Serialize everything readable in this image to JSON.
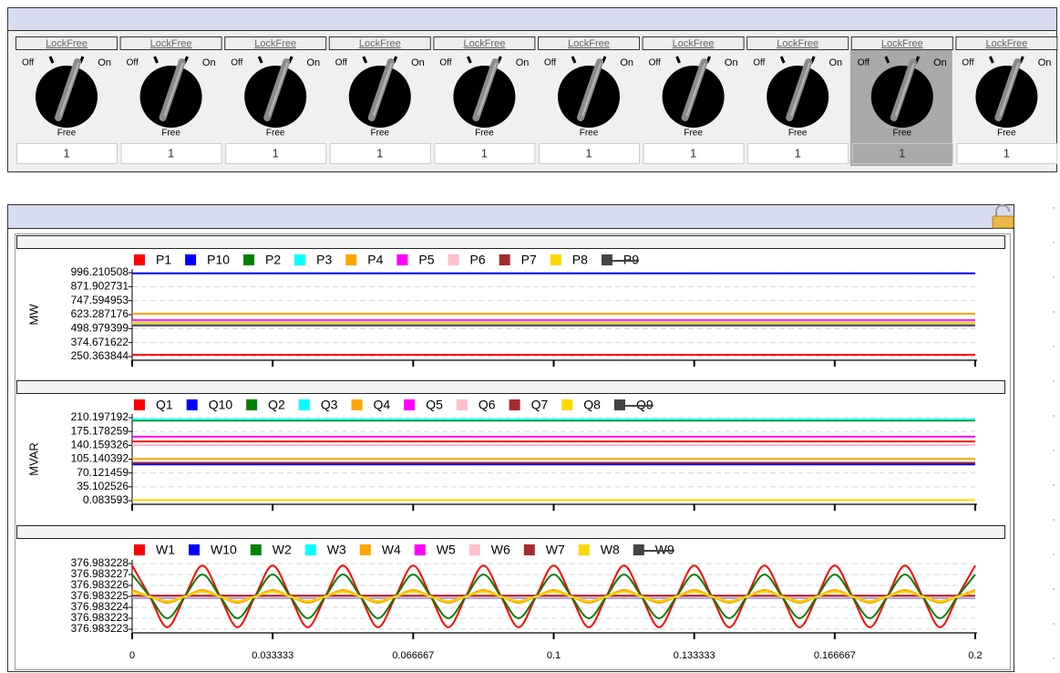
{
  "switches": [
    {
      "lock": "LockFree",
      "off": "Off",
      "on": "On",
      "mode": "Free",
      "value": "1",
      "selected": false
    },
    {
      "lock": "LockFree",
      "off": "Off",
      "on": "On",
      "mode": "Free",
      "value": "1",
      "selected": false
    },
    {
      "lock": "LockFree",
      "off": "Off",
      "on": "On",
      "mode": "Free",
      "value": "1",
      "selected": false
    },
    {
      "lock": "LockFree",
      "off": "Off",
      "on": "On",
      "mode": "Free",
      "value": "1",
      "selected": false
    },
    {
      "lock": "LockFree",
      "off": "Off",
      "on": "On",
      "mode": "Free",
      "value": "1",
      "selected": false
    },
    {
      "lock": "LockFree",
      "off": "Off",
      "on": "On",
      "mode": "Free",
      "value": "1",
      "selected": false
    },
    {
      "lock": "LockFree",
      "off": "Off",
      "on": "On",
      "mode": "Free",
      "value": "1",
      "selected": false
    },
    {
      "lock": "LockFree",
      "off": "Off",
      "on": "On",
      "mode": "Free",
      "value": "1",
      "selected": false
    },
    {
      "lock": "LockFree",
      "off": "Off",
      "on": "On",
      "mode": "Free",
      "value": "1",
      "selected": true
    },
    {
      "lock": "LockFree",
      "off": "Off",
      "on": "On",
      "mode": "Free",
      "value": "1",
      "selected": false
    }
  ],
  "chart_data": [
    {
      "type": "line",
      "y_label": "MW",
      "xlim": [
        0,
        0.2
      ],
      "xticks": [
        0,
        0.033333,
        0.066667,
        0.1,
        0.133333,
        0.166667,
        0.2
      ],
      "show_xtick_labels": false,
      "ylim": [
        250.363844,
        996.210508
      ],
      "yticks": [
        996.210508,
        871.902731,
        747.594953,
        623.287176,
        498.979399,
        374.671622,
        250.363844
      ],
      "grid": true,
      "series": [
        {
          "name": "P1",
          "color": "#ff0000",
          "x": [
            0,
            0.2
          ],
          "values": [
            266,
            266
          ]
        },
        {
          "name": "P10",
          "color": "#0000ff",
          "x": [
            0,
            0.2
          ],
          "values": [
            990,
            990
          ]
        },
        {
          "name": "P2",
          "color": "#008000",
          "x": [
            0,
            0.2
          ],
          "values": [
            545,
            545
          ]
        },
        {
          "name": "P3",
          "color": "#00ffff",
          "x": [
            0,
            0.2
          ],
          "values": [
            540,
            540
          ]
        },
        {
          "name": "P4",
          "color": "#ffa500",
          "x": [
            0,
            0.2
          ],
          "values": [
            631,
            631
          ]
        },
        {
          "name": "P5",
          "color": "#ff00ff",
          "x": [
            0,
            0.2
          ],
          "values": [
            574,
            574
          ]
        },
        {
          "name": "P6",
          "color": "#ffc0cb",
          "x": [
            0,
            0.2
          ],
          "values": [
            560,
            560
          ]
        },
        {
          "name": "P7",
          "color": "#a52a2a",
          "x": [
            0,
            0.2
          ],
          "values": [
            526,
            526
          ]
        },
        {
          "name": "P8",
          "color": "#ffd700",
          "x": [
            0,
            0.2
          ],
          "values": [
            550,
            550
          ]
        },
        {
          "name": "P9",
          "color": "#444444",
          "hidden": true
        }
      ]
    },
    {
      "type": "line",
      "y_label": "MVAR",
      "xlim": [
        0,
        0.2
      ],
      "xticks": [
        0,
        0.033333,
        0.066667,
        0.1,
        0.133333,
        0.166667,
        0.2
      ],
      "show_xtick_labels": false,
      "ylim": [
        0.083593,
        210.197192
      ],
      "yticks": [
        210.197192,
        175.178259,
        140.159326,
        105.140392,
        70.121459,
        35.102526,
        0.083593
      ],
      "grid": true,
      "series": [
        {
          "name": "Q1",
          "color": "#ff0000",
          "x": [
            0,
            0.2
          ],
          "values": [
            150,
            150
          ]
        },
        {
          "name": "Q10",
          "color": "#0000ff",
          "x": [
            0,
            0.2
          ],
          "values": [
            92,
            92
          ]
        },
        {
          "name": "Q2",
          "color": "#008000",
          "x": [
            0,
            0.2
          ],
          "values": [
            203,
            203
          ]
        },
        {
          "name": "Q3",
          "color": "#00ffff",
          "x": [
            0,
            0.2
          ],
          "values": [
            206,
            206
          ]
        },
        {
          "name": "Q4",
          "color": "#ffa500",
          "x": [
            0,
            0.2
          ],
          "values": [
            106,
            106
          ]
        },
        {
          "name": "Q5",
          "color": "#ff00ff",
          "x": [
            0,
            0.2
          ],
          "values": [
            162,
            162
          ]
        },
        {
          "name": "Q6",
          "color": "#ffc0cb",
          "x": [
            0,
            0.2
          ],
          "values": [
            141,
            141
          ]
        },
        {
          "name": "Q7",
          "color": "#a52a2a",
          "x": [
            0,
            0.2
          ],
          "values": [
            96,
            96
          ]
        },
        {
          "name": "Q8",
          "color": "#ffd700",
          "x": [
            0,
            0.2
          ],
          "values": [
            1.5,
            1.5
          ]
        },
        {
          "name": "Q9",
          "color": "#444444",
          "hidden": true
        }
      ]
    },
    {
      "type": "line",
      "xlim": [
        0,
        0.2
      ],
      "xticks": [
        0,
        0.033333,
        0.066667,
        0.1,
        0.133333,
        0.166667,
        0.2
      ],
      "show_xtick_labels": true,
      "ylim": [
        376.9832226,
        376.9832277
      ],
      "yticks": [
        {
          "value": 376.9832277,
          "label": "376.983228"
        },
        {
          "value": 376.98322685,
          "label": "376.983227"
        },
        {
          "value": 376.983226,
          "label": "376.983226"
        },
        {
          "value": 376.98322515,
          "label": "376.983225"
        },
        {
          "value": 376.9832243,
          "label": "376.983224"
        },
        {
          "value": 376.98322345,
          "label": "376.983223"
        },
        {
          "value": 376.9832226,
          "label": "376.983223"
        }
      ],
      "grid": true,
      "x": [
        0,
        0.0041667,
        0.0083333,
        0.0125,
        0.0166667,
        0.0208333,
        0.025,
        0.0291667,
        0.0333333,
        0.0375,
        0.0416667,
        0.0458333,
        0.05,
        0.0541667,
        0.0583333,
        0.0625,
        0.0666667,
        0.0708333,
        0.075,
        0.0791667,
        0.0833333,
        0.0875,
        0.0916667,
        0.0958333,
        0.1,
        0.1041667,
        0.1083333,
        0.1125,
        0.1166667,
        0.1208333,
        0.125,
        0.1291667,
        0.1333333,
        0.1375,
        0.1416667,
        0.1458333,
        0.15,
        0.1541667,
        0.1583333,
        0.1625,
        0.1666667,
        0.1708333,
        0.175,
        0.1791667,
        0.1833333,
        0.1875,
        0.1916667,
        0.1958333,
        0.2
      ],
      "series": [
        {
          "name": "W1",
          "color": "#ff0000",
          "values": [
            376.98322755,
            376.98322515,
            376.98322275,
            376.98322515,
            376.98322755,
            376.98322515,
            376.98322275,
            376.98322515,
            376.98322755,
            376.98322515,
            376.98322275,
            376.98322515,
            376.98322755,
            376.98322515,
            376.98322275,
            376.98322515,
            376.98322755,
            376.98322515,
            376.98322275,
            376.98322515,
            376.98322755,
            376.98322515,
            376.98322275,
            376.98322515,
            376.98322755,
            376.98322515,
            376.98322275,
            376.98322515,
            376.98322755,
            376.98322515,
            376.98322275,
            376.98322515,
            376.98322755,
            376.98322515,
            376.98322275,
            376.98322515,
            376.98322755,
            376.98322515,
            376.98322275,
            376.98322515,
            376.98322755,
            376.98322515,
            376.98322275,
            376.98322515,
            376.98322755,
            376.98322515,
            376.98322275,
            376.98322515,
            376.98322755
          ]
        },
        {
          "name": "W10",
          "color": "#0000ff",
          "x": [
            0,
            0.2
          ],
          "values": [
            376.98322505,
            376.98322505
          ]
        },
        {
          "name": "W2",
          "color": "#008000",
          "values": [
            376.98322685,
            376.98322515,
            376.98322345,
            376.98322515,
            376.98322685,
            376.98322515,
            376.98322345,
            376.98322515,
            376.98322685,
            376.98322515,
            376.98322345,
            376.98322515,
            376.98322685,
            376.98322515,
            376.98322345,
            376.98322515,
            376.98322685,
            376.98322515,
            376.98322345,
            376.98322515,
            376.98322685,
            376.98322515,
            376.98322345,
            376.98322515,
            376.98322685,
            376.98322515,
            376.98322345,
            376.98322515,
            376.98322685,
            376.98322515,
            376.98322345,
            376.98322515,
            376.98322685,
            376.98322515,
            376.98322345,
            376.98322515,
            376.98322685,
            376.98322515,
            376.98322345,
            376.98322515,
            376.98322685,
            376.98322515,
            376.98322345,
            376.98322515,
            376.98322685,
            376.98322515,
            376.98322345,
            376.98322515,
            376.98322685
          ]
        },
        {
          "name": "W3",
          "color": "#00ffff",
          "x": [
            0,
            0.2
          ],
          "values": [
            376.9832251,
            376.9832251
          ]
        },
        {
          "name": "W4",
          "color": "#ffa500",
          "values": [
            376.98322565,
            376.98322515,
            376.98322465,
            376.98322515,
            376.98322565,
            376.98322515,
            376.98322465,
            376.98322515,
            376.98322565,
            376.98322515,
            376.98322465,
            376.98322515,
            376.98322565,
            376.98322515,
            376.98322465,
            376.98322515,
            376.98322565,
            376.98322515,
            376.98322465,
            376.98322515,
            376.98322565,
            376.98322515,
            376.98322465,
            376.98322515,
            376.98322565,
            376.98322515,
            376.98322465,
            376.98322515,
            376.98322565,
            376.98322515,
            376.98322465,
            376.98322515,
            376.98322565,
            376.98322515,
            376.98322465,
            376.98322515,
            376.98322565,
            376.98322515,
            376.98322465,
            376.98322515,
            376.98322565,
            376.98322515,
            376.98322465,
            376.98322515,
            376.98322565,
            376.98322515,
            376.98322465,
            376.98322515,
            376.98322565
          ]
        },
        {
          "name": "W5",
          "color": "#ff00ff",
          "x": [
            0,
            0.2
          ],
          "values": [
            376.9832252,
            376.9832252
          ]
        },
        {
          "name": "W6",
          "color": "#ffc0cb",
          "x": [
            0,
            0.2
          ],
          "values": [
            376.9832251,
            376.9832251
          ]
        },
        {
          "name": "W7",
          "color": "#a52a2a",
          "x": [
            0,
            0.2
          ],
          "values": [
            376.9832252,
            376.9832252
          ]
        },
        {
          "name": "W8",
          "color": "#ffd700",
          "values": [
            376.9832255,
            376.98322515,
            376.9832248,
            376.98322515,
            376.9832255,
            376.98322515,
            376.9832248,
            376.98322515,
            376.9832255,
            376.98322515,
            376.9832248,
            376.98322515,
            376.9832255,
            376.98322515,
            376.9832248,
            376.98322515,
            376.9832255,
            376.98322515,
            376.9832248,
            376.98322515,
            376.9832255,
            376.98322515,
            376.9832248,
            376.98322515,
            376.9832255,
            376.98322515,
            376.9832248,
            376.98322515,
            376.9832255,
            376.98322515,
            376.9832248,
            376.98322515,
            376.9832255,
            376.98322515,
            376.9832248,
            376.98322515,
            376.9832255,
            376.98322515,
            376.9832248,
            376.98322515,
            376.9832255,
            376.98322515,
            376.9832248,
            376.98322515,
            376.9832255,
            376.98322515,
            376.9832248,
            376.98322515,
            376.9832255
          ]
        },
        {
          "name": "W9",
          "color": "#444444",
          "hidden": true
        }
      ]
    }
  ]
}
